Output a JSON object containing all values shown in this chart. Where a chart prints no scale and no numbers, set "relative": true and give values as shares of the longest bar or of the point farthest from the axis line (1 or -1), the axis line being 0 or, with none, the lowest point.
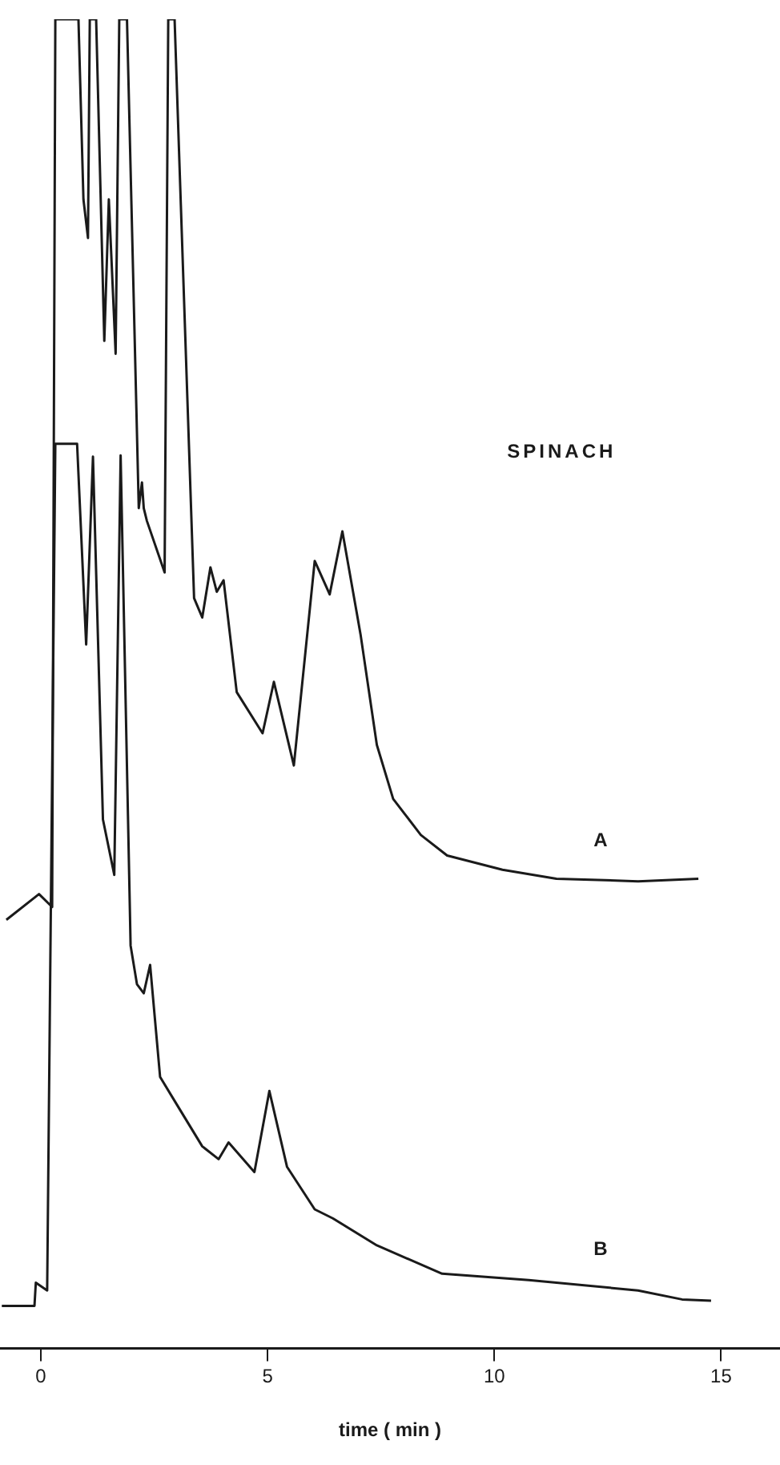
{
  "chart_data": {
    "type": "line",
    "relative": true,
    "xlabel": "time ( min )",
    "annotations": [
      "SPINACH"
    ],
    "xlim": [
      -0.9,
      16.3
    ],
    "xticks": [
      0,
      5,
      10,
      15
    ],
    "grid": false,
    "legend": false,
    "marker": "none",
    "line_style": "solid",
    "series": [
      {
        "name": "A",
        "color": "#1a1a1a",
        "x": [
          -0.76,
          -0.04,
          0.25,
          0.32,
          0.83,
          0.94,
          1.04,
          1.08,
          1.22,
          1.4,
          1.5,
          1.65,
          1.73,
          1.9,
          2.16,
          2.23,
          2.27,
          2.34,
          2.73,
          2.81,
          2.95,
          3.38,
          3.56,
          3.74,
          3.88,
          4.03,
          4.32,
          4.89,
          5.14,
          5.58,
          6.04,
          6.37,
          6.65,
          7.05,
          7.41,
          7.77,
          8.38,
          8.96,
          10.18,
          11.37,
          13.17,
          14.5
        ],
        "values": [
          0.3,
          0.32,
          0.31,
          1,
          1,
          0.86,
          0.83,
          1,
          1,
          0.75,
          0.86,
          0.74,
          1,
          1,
          0.62,
          0.64,
          0.62,
          0.61,
          0.57,
          1,
          1,
          0.55,
          0.535,
          0.574,
          0.555,
          0.564,
          0.477,
          0.445,
          0.485,
          0.42,
          0.579,
          0.553,
          0.602,
          0.522,
          0.436,
          0.394,
          0.366,
          0.35,
          0.339,
          0.332,
          0.33,
          0.332
        ]
      },
      {
        "name": "B",
        "color": "#1a1a1a",
        "x": [
          -0.86,
          -0.14,
          -0.11,
          0.14,
          0.32,
          0.8,
          1.0,
          1.15,
          1.37,
          1.62,
          1.76,
          1.98,
          2.12,
          2.27,
          2.41,
          2.63,
          2.99,
          3.56,
          3.92,
          4.14,
          4.71,
          5.04,
          5.43,
          6.04,
          6.44,
          7.41,
          8.85,
          10.76,
          13.17,
          14.14,
          14.78
        ],
        "values": [
          0,
          0,
          0.018,
          0.012,
          0.67,
          0.67,
          0.514,
          0.66,
          0.378,
          0.335,
          0.661,
          0.28,
          0.25,
          0.243,
          0.265,
          0.178,
          0.157,
          0.124,
          0.114,
          0.127,
          0.104,
          0.167,
          0.108,
          0.075,
          0.068,
          0.047,
          0.025,
          0.02,
          0.012,
          0.005,
          0.004
        ]
      }
    ]
  }
}
